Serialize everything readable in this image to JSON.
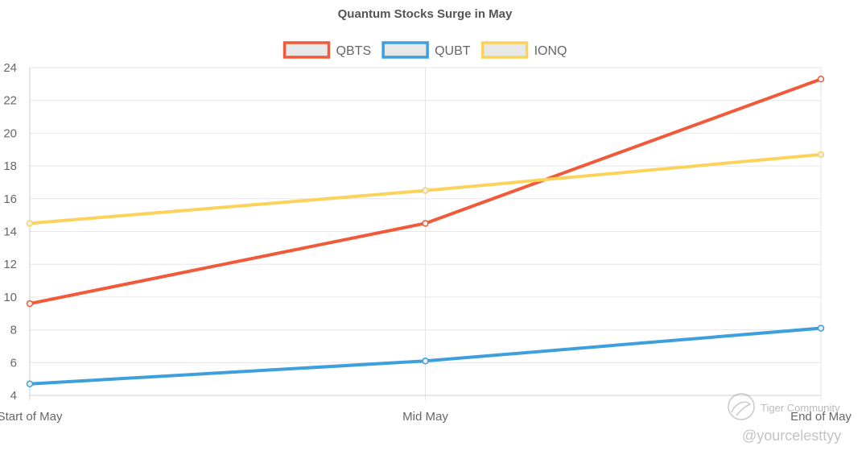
{
  "chart_data": {
    "type": "line",
    "title": "Quantum Stocks Surge in May",
    "categories": [
      "Start of May",
      "Mid May",
      "End of May"
    ],
    "ylim": [
      4,
      24
    ],
    "yticks": [
      4,
      6,
      8,
      10,
      12,
      14,
      16,
      18,
      20,
      22,
      24
    ],
    "grid": true,
    "legend_position": "top",
    "series": [
      {
        "name": "QBTS",
        "color": "#f05a3a",
        "values": [
          9.6,
          14.5,
          23.3
        ]
      },
      {
        "name": "QUBT",
        "color": "#3d9fdc",
        "values": [
          4.7,
          6.1,
          8.1
        ]
      },
      {
        "name": "IONQ",
        "color": "#fbd35c",
        "values": [
          14.5,
          16.5,
          18.7
        ]
      }
    ]
  },
  "watermark": {
    "brand": "Tiger Community",
    "handle": "@yourcelesttyy",
    "icon": "tiger-logo-icon"
  }
}
